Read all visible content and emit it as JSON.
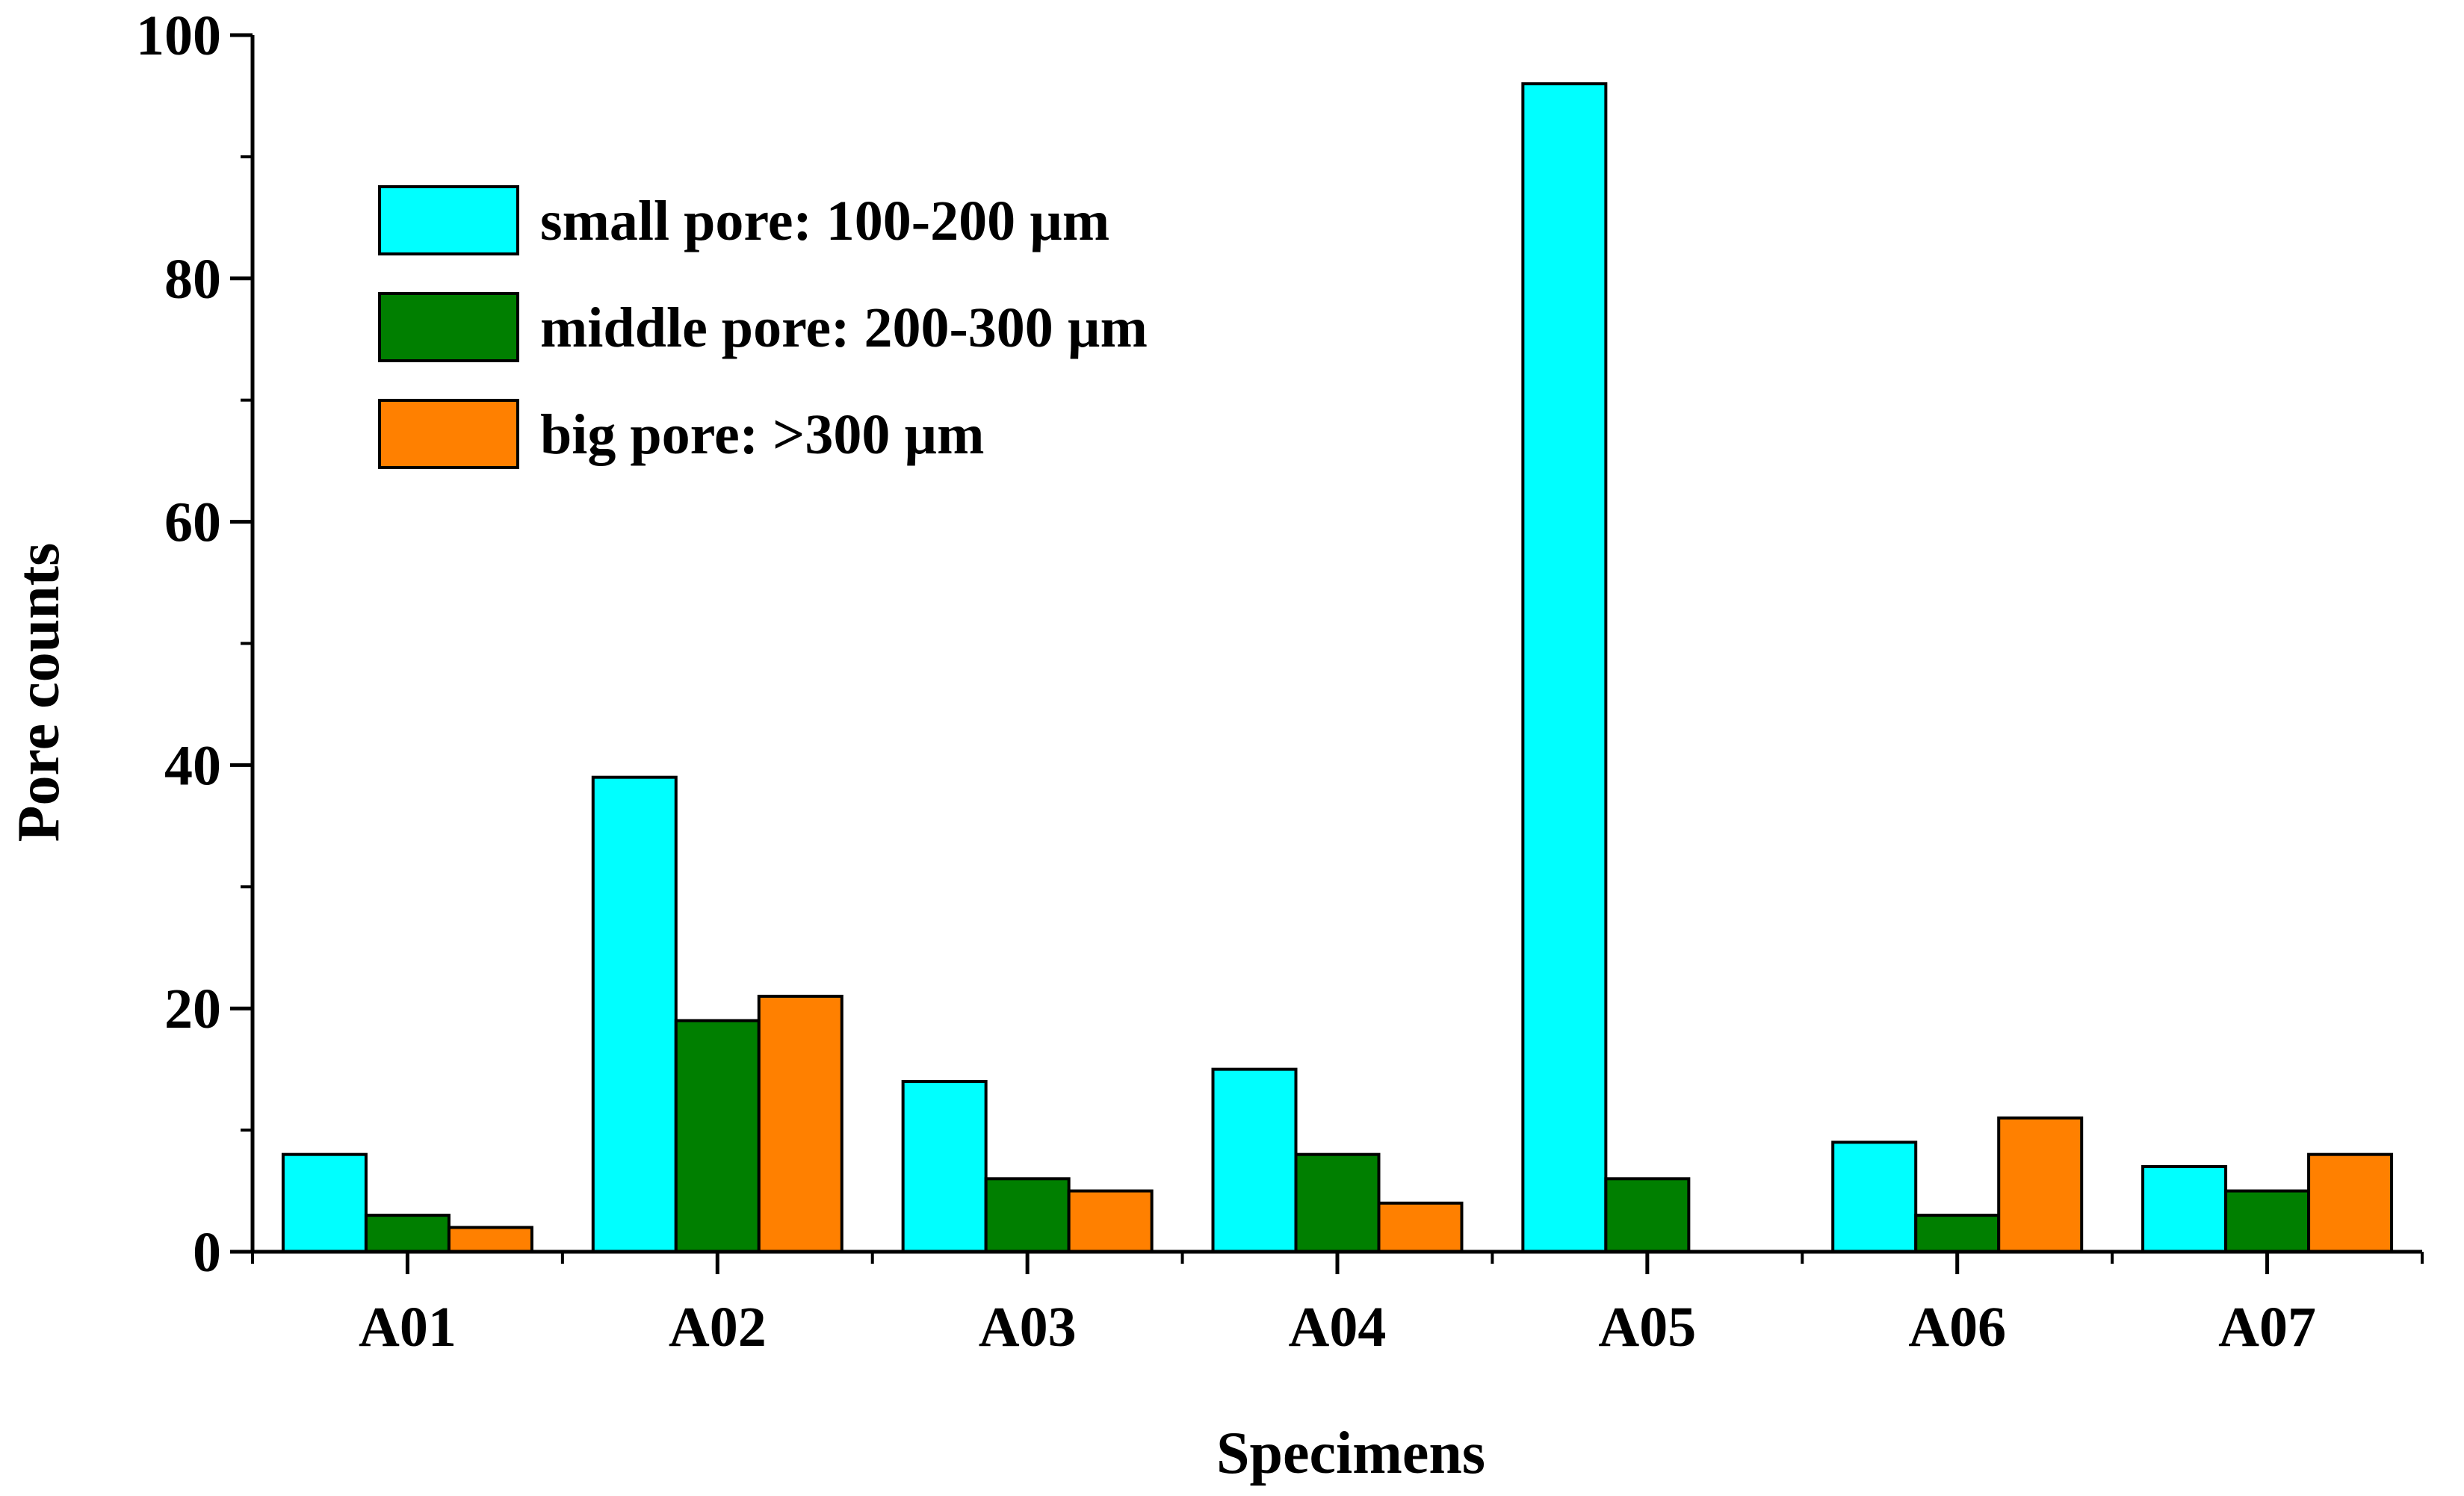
{
  "chart_data": {
    "type": "bar",
    "title": "",
    "xlabel": "Specimens",
    "ylabel": "Pore counts",
    "ylim": [
      0,
      100
    ],
    "yticks": [
      0,
      20,
      40,
      60,
      80,
      100
    ],
    "grid": false,
    "legend_position": "top-left",
    "categories": [
      "A01",
      "A02",
      "A03",
      "A04",
      "A05",
      "A06",
      "A07"
    ],
    "series": [
      {
        "name": "small pore: 100-200 µm",
        "color": "#00FFFF",
        "values": [
          8,
          39,
          14,
          15,
          96,
          9,
          7
        ]
      },
      {
        "name": "middle pore: 200-300 µm",
        "color": "#007F00",
        "values": [
          3,
          19,
          6,
          8,
          6,
          3,
          5
        ]
      },
      {
        "name": "big pore: >300 µm",
        "color": "#FF8000",
        "values": [
          2,
          21,
          5,
          4,
          0,
          11,
          8
        ]
      }
    ]
  }
}
